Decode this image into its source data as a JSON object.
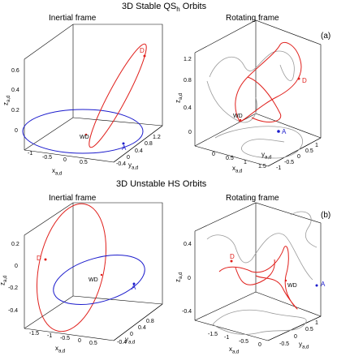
{
  "figure": {
    "section_top": "3D Stable QS",
    "section_top_sub": "h",
    "section_top_tail": " Orbits",
    "section_bottom": "3D Unstable HS Orbits"
  },
  "panels": {
    "tl": {
      "title": "Inertial frame",
      "z_ticks": [
        "0.6",
        "0.4",
        "0.2",
        "0"
      ],
      "x_ticks": [
        "-1",
        "-0.5",
        "0",
        "0.5"
      ],
      "y_ticks": [
        "1.2",
        "0.8",
        "0.4",
        "0",
        "-0.4"
      ],
      "xlabel": "x",
      "ylabel": "y",
      "zlabel": "z",
      "sub": "a,d",
      "D": "D",
      "WD": "WD",
      "A": "A"
    },
    "tr": {
      "title": "Rotating frame",
      "tag": "(a)",
      "z_ticks": [
        "1.2",
        "0.8",
        "0.4",
        "0"
      ],
      "x_ticks": [
        "0",
        "0.5",
        "1",
        "1.5"
      ],
      "y_ticks": [
        "1",
        "0.5",
        "0",
        "-0.5",
        "-1"
      ],
      "xlabel": "x",
      "ylabel": "y",
      "zlabel": "z",
      "sub": "a,d",
      "D": "D",
      "WD": "WD",
      "A": "A"
    },
    "bl": {
      "title": "Inertial frame",
      "z_ticks": [
        "0.2",
        "0",
        "-0.2",
        "-0.4"
      ],
      "x_ticks": [
        "-1.5",
        "-1",
        "-0.5",
        "0",
        "0.5"
      ],
      "y_ticks": [
        "0.8",
        "0.4",
        "0",
        "-0.4"
      ],
      "xlabel": "x",
      "ylabel": "y",
      "zlabel": "z",
      "sub": "a,d",
      "D": "D",
      "WD": "WD",
      "A": "A"
    },
    "br": {
      "title": "Rotating frame",
      "tag": "(b)",
      "z_ticks": [
        "0.4",
        "0",
        "-0.4"
      ],
      "x_ticks": [
        "-1.5",
        "-1",
        "-0.5",
        "0"
      ],
      "y_ticks": [
        "1",
        "0.5",
        "0",
        "-0.5"
      ],
      "xlabel": "x",
      "ylabel": "y",
      "zlabel": "z",
      "sub": "a,d",
      "D": "D",
      "WD": "WD",
      "A": "A"
    }
  },
  "colors": {
    "red_orbit": "#e0201c",
    "blue_orbit": "#1a1acc",
    "projection": "#9a9a9a",
    "axis": "#000000",
    "grid": "#d0d0d0"
  }
}
